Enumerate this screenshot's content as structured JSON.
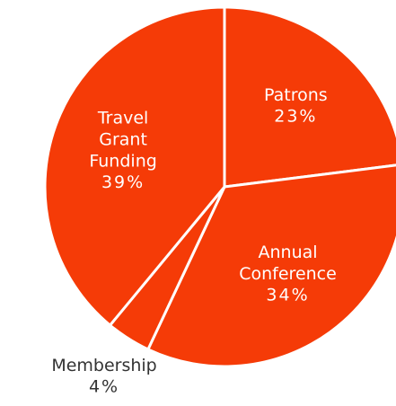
{
  "chart_data": {
    "type": "pie",
    "categories": [
      "Patrons",
      "Annual Conference",
      "Membership",
      "Travel Grant Funding"
    ],
    "values": [
      23,
      34,
      4,
      39
    ],
    "value_labels": [
      "23%",
      "34%",
      "4%",
      "39%"
    ],
    "color": "#f53b07"
  }
}
